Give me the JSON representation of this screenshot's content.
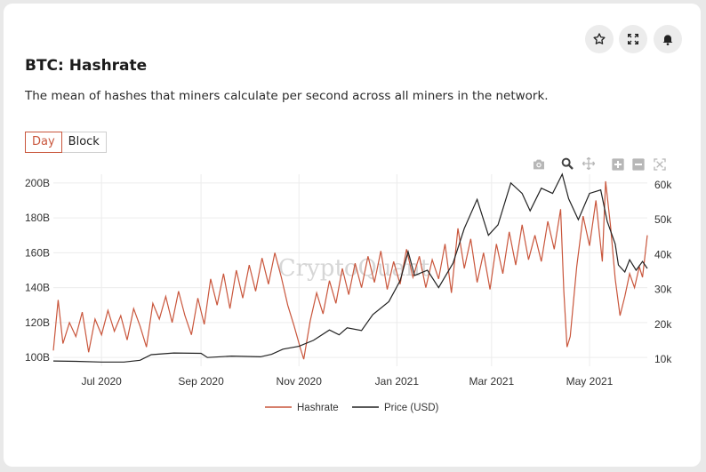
{
  "header": {
    "title": "BTC: Hashrate",
    "description": "The mean of hashes that miners calculate per second across all miners in the network."
  },
  "toolbar": {
    "star_icon": "star-icon",
    "fullscreen_icon": "expand-icon",
    "alert_icon": "bell-icon"
  },
  "tabs": [
    {
      "label": "Day",
      "active": true
    },
    {
      "label": "Block",
      "active": false
    }
  ],
  "modebar": [
    "camera-icon",
    "zoom-icon",
    "pan-icon",
    "zoom-in-icon",
    "zoom-out-icon",
    "autoscale-icon"
  ],
  "watermark": "CryptoQuant",
  "colors": {
    "hashrate": "#c9563c",
    "price": "#222222",
    "accent": "#c9563c"
  },
  "chart_data": {
    "type": "line",
    "x_ticks": [
      "Jul 2020",
      "Sep 2020",
      "Nov 2020",
      "Jan 2021",
      "Mar 2021",
      "May 2021"
    ],
    "x_range": [
      "2020-06-01",
      "2021-06-06"
    ],
    "y_left": {
      "ticks": [
        "100B",
        "120B",
        "140B",
        "160B",
        "180B",
        "200B"
      ],
      "range": [
        95,
        205
      ]
    },
    "y_right": {
      "ticks": [
        "10k",
        "20k",
        "30k",
        "40k",
        "50k",
        "60k"
      ],
      "range": [
        8,
        63
      ]
    },
    "legend": [
      "Hashrate",
      "Price (USD)"
    ],
    "series": [
      {
        "name": "Hashrate",
        "axis": "left",
        "values": [
          [
            "2020-06-01",
            104
          ],
          [
            "2020-06-04",
            133
          ],
          [
            "2020-06-07",
            108
          ],
          [
            "2020-06-11",
            120
          ],
          [
            "2020-06-15",
            112
          ],
          [
            "2020-06-19",
            126
          ],
          [
            "2020-06-23",
            103
          ],
          [
            "2020-06-27",
            122
          ],
          [
            "2020-07-01",
            113
          ],
          [
            "2020-07-05",
            127
          ],
          [
            "2020-07-09",
            115
          ],
          [
            "2020-07-13",
            124
          ],
          [
            "2020-07-17",
            110
          ],
          [
            "2020-07-21",
            128
          ],
          [
            "2020-07-25",
            118
          ],
          [
            "2020-07-29",
            106
          ],
          [
            "2020-08-02",
            131
          ],
          [
            "2020-08-06",
            122
          ],
          [
            "2020-08-10",
            135
          ],
          [
            "2020-08-14",
            120
          ],
          [
            "2020-08-18",
            138
          ],
          [
            "2020-08-22",
            124
          ],
          [
            "2020-08-26",
            113
          ],
          [
            "2020-08-30",
            134
          ],
          [
            "2020-09-03",
            119
          ],
          [
            "2020-09-07",
            145
          ],
          [
            "2020-09-11",
            130
          ],
          [
            "2020-09-15",
            148
          ],
          [
            "2020-09-19",
            128
          ],
          [
            "2020-09-23",
            150
          ],
          [
            "2020-09-27",
            134
          ],
          [
            "2020-10-01",
            153
          ],
          [
            "2020-10-05",
            138
          ],
          [
            "2020-10-09",
            157
          ],
          [
            "2020-10-13",
            142
          ],
          [
            "2020-10-17",
            160
          ],
          [
            "2020-10-21",
            146
          ],
          [
            "2020-10-25",
            130
          ],
          [
            "2020-10-29",
            118
          ],
          [
            "2020-11-02",
            105
          ],
          [
            "2020-11-04",
            99
          ],
          [
            "2020-11-08",
            121
          ],
          [
            "2020-11-12",
            137
          ],
          [
            "2020-11-16",
            125
          ],
          [
            "2020-11-20",
            144
          ],
          [
            "2020-11-24",
            131
          ],
          [
            "2020-11-28",
            151
          ],
          [
            "2020-12-02",
            136
          ],
          [
            "2020-12-06",
            154
          ],
          [
            "2020-12-10",
            140
          ],
          [
            "2020-12-14",
            158
          ],
          [
            "2020-12-18",
            143
          ],
          [
            "2020-12-22",
            161
          ],
          [
            "2020-12-26",
            139
          ],
          [
            "2020-12-30",
            155
          ],
          [
            "2021-01-03",
            142
          ],
          [
            "2021-01-07",
            162
          ],
          [
            "2021-01-11",
            146
          ],
          [
            "2021-01-15",
            158
          ],
          [
            "2021-01-19",
            140
          ],
          [
            "2021-01-23",
            156
          ],
          [
            "2021-01-27",
            145
          ],
          [
            "2021-01-31",
            165
          ],
          [
            "2021-02-04",
            137
          ],
          [
            "2021-02-08",
            174
          ],
          [
            "2021-02-12",
            151
          ],
          [
            "2021-02-16",
            168
          ],
          [
            "2021-02-20",
            143
          ],
          [
            "2021-02-24",
            160
          ],
          [
            "2021-02-28",
            139
          ],
          [
            "2021-03-04",
            165
          ],
          [
            "2021-03-08",
            148
          ],
          [
            "2021-03-12",
            172
          ],
          [
            "2021-03-16",
            153
          ],
          [
            "2021-03-20",
            176
          ],
          [
            "2021-03-24",
            156
          ],
          [
            "2021-03-28",
            170
          ],
          [
            "2021-04-01",
            155
          ],
          [
            "2021-04-05",
            178
          ],
          [
            "2021-04-09",
            162
          ],
          [
            "2021-04-13",
            185
          ],
          [
            "2021-04-15",
            138
          ],
          [
            "2021-04-17",
            106
          ],
          [
            "2021-04-19",
            112
          ],
          [
            "2021-04-23",
            152
          ],
          [
            "2021-04-27",
            181
          ],
          [
            "2021-05-01",
            164
          ],
          [
            "2021-05-05",
            190
          ],
          [
            "2021-05-09",
            155
          ],
          [
            "2021-05-11",
            201
          ],
          [
            "2021-05-14",
            176
          ],
          [
            "2021-05-17",
            145
          ],
          [
            "2021-05-20",
            124
          ],
          [
            "2021-05-23",
            135
          ],
          [
            "2021-05-26",
            148
          ],
          [
            "2021-05-29",
            140
          ],
          [
            "2021-06-01",
            152
          ],
          [
            "2021-06-03",
            146
          ],
          [
            "2021-06-06",
            170
          ]
        ]
      },
      {
        "name": "Price (USD)",
        "axis": "right",
        "values": [
          [
            "2020-06-01",
            9.5
          ],
          [
            "2020-06-15",
            9.4
          ],
          [
            "2020-07-01",
            9.2
          ],
          [
            "2020-07-15",
            9.2
          ],
          [
            "2020-07-25",
            9.7
          ],
          [
            "2020-08-01",
            11.3
          ],
          [
            "2020-08-15",
            11.8
          ],
          [
            "2020-09-01",
            11.7
          ],
          [
            "2020-09-05",
            10.5
          ],
          [
            "2020-09-20",
            10.9
          ],
          [
            "2020-10-08",
            10.7
          ],
          [
            "2020-10-15",
            11.4
          ],
          [
            "2020-10-22",
            12.9
          ],
          [
            "2020-11-01",
            13.7
          ],
          [
            "2020-11-10",
            15.4
          ],
          [
            "2020-11-20",
            18.4
          ],
          [
            "2020-11-26",
            17.0
          ],
          [
            "2020-12-01",
            19.0
          ],
          [
            "2020-12-10",
            18.2
          ],
          [
            "2020-12-17",
            22.8
          ],
          [
            "2020-12-27",
            26.5
          ],
          [
            "2021-01-03",
            32.5
          ],
          [
            "2021-01-08",
            40.8
          ],
          [
            "2021-01-12",
            34.0
          ],
          [
            "2021-01-20",
            35.5
          ],
          [
            "2021-01-27",
            30.5
          ],
          [
            "2021-02-05",
            37.5
          ],
          [
            "2021-02-12",
            47.5
          ],
          [
            "2021-02-20",
            55.8
          ],
          [
            "2021-02-27",
            45.5
          ],
          [
            "2021-03-05",
            48.5
          ],
          [
            "2021-03-13",
            60.5
          ],
          [
            "2021-03-20",
            57.5
          ],
          [
            "2021-03-25",
            52.5
          ],
          [
            "2021-04-01",
            59.0
          ],
          [
            "2021-04-08",
            57.5
          ],
          [
            "2021-04-14",
            63.0
          ],
          [
            "2021-04-18",
            56.0
          ],
          [
            "2021-04-24",
            50.0
          ],
          [
            "2021-05-01",
            57.5
          ],
          [
            "2021-05-08",
            58.5
          ],
          [
            "2021-05-12",
            49.5
          ],
          [
            "2021-05-17",
            43.0
          ],
          [
            "2021-05-19",
            37.0
          ],
          [
            "2021-05-23",
            35.0
          ],
          [
            "2021-05-26",
            38.5
          ],
          [
            "2021-05-30",
            35.5
          ],
          [
            "2021-06-03",
            38.0
          ],
          [
            "2021-06-06",
            36.0
          ]
        ]
      }
    ]
  }
}
